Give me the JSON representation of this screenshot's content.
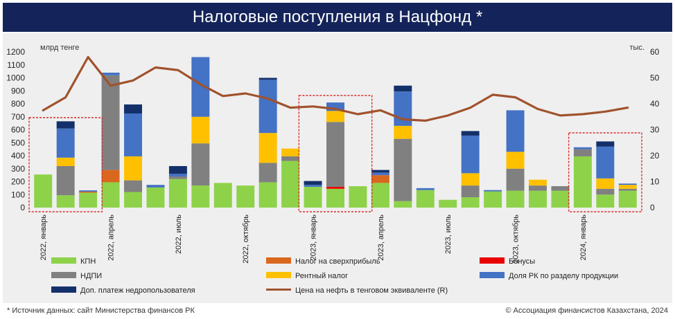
{
  "header": {
    "title": "Налоговые поступления в Нацфонд *"
  },
  "footer": {
    "source": "* Источник данных: сайт Министерства финансов РК",
    "copyright": "© Ассоциация финансистов Казахстана, 2024"
  },
  "colors": {
    "title_bg": "#14245a",
    "plot_bg": "#efefef",
    "highlight_box": "#d92b2b"
  },
  "chart_data": {
    "type": "bar",
    "stacked": true,
    "title": "Налоговые поступления в Нацфонд *",
    "ylabel": "млрд тенге",
    "y2label": "тыс.",
    "ylim": [
      0,
      1200
    ],
    "y2lim": [
      0,
      60
    ],
    "yticks": [
      0,
      100,
      200,
      300,
      400,
      500,
      600,
      700,
      800,
      900,
      1000,
      1100,
      1200
    ],
    "y2ticks": [
      0,
      10,
      20,
      30,
      40,
      50,
      60
    ],
    "grid": false,
    "legend_position": "bottom",
    "months": [
      "2022-01",
      "2022-02",
      "2022-03",
      "2022-04",
      "2022-05",
      "2022-06",
      "2022-07",
      "2022-08",
      "2022-09",
      "2022-10",
      "2022-11",
      "2022-12",
      "2023-01",
      "2023-02",
      "2023-03",
      "2023-04",
      "2023-05",
      "2023-06",
      "2023-07",
      "2023-08",
      "2023-09",
      "2023-10",
      "2023-11",
      "2023-12",
      "2024-01",
      "2024-02",
      "2024-03"
    ],
    "x_tick_labels": [
      {
        "index": 0,
        "label": "2022, январь"
      },
      {
        "index": 3,
        "label": "2022, апрель"
      },
      {
        "index": 6,
        "label": "2022, июль"
      },
      {
        "index": 9,
        "label": "2022, октябрь"
      },
      {
        "index": 12,
        "label": "2023, январь"
      },
      {
        "index": 15,
        "label": "2023, апрель"
      },
      {
        "index": 18,
        "label": "2023, июль"
      },
      {
        "index": 21,
        "label": "2023, октябрь"
      },
      {
        "index": 24,
        "label": "2024, январь"
      }
    ],
    "highlight_ranges": [
      [
        0,
        2
      ],
      [
        12,
        14
      ],
      [
        24,
        26
      ]
    ],
    "series": [
      {
        "name": "КПН",
        "color": "#8ed24a",
        "values": [
          255,
          95,
          115,
          195,
          120,
          155,
          220,
          170,
          190,
          170,
          195,
          360,
          160,
          145,
          165,
          190,
          50,
          135,
          60,
          80,
          125,
          130,
          130,
          130,
          395,
          100,
          130
        ]
      },
      {
        "name": "Налог на сверхприбыль",
        "color": "#d9681e",
        "values": [
          0,
          0,
          8,
          95,
          0,
          0,
          0,
          0,
          0,
          0,
          0,
          0,
          0,
          0,
          0,
          60,
          0,
          0,
          0,
          0,
          0,
          0,
          0,
          0,
          0,
          0,
          0
        ]
      },
      {
        "name": "Бонусы",
        "color": "#e80000",
        "values": [
          0,
          0,
          0,
          0,
          0,
          0,
          0,
          0,
          0,
          0,
          0,
          0,
          0,
          15,
          0,
          0,
          0,
          0,
          0,
          0,
          0,
          0,
          0,
          0,
          0,
          0,
          0
        ]
      },
      {
        "name": "НДПИ",
        "color": "#808080",
        "values": [
          0,
          225,
          0,
          730,
          90,
          0,
          20,
          325,
          0,
          0,
          150,
          35,
          0,
          500,
          0,
          0,
          480,
          0,
          0,
          90,
          0,
          170,
          40,
          35,
          55,
          45,
          15
        ]
      },
      {
        "name": "Рентный налог",
        "color": "#ffc000",
        "values": [
          0,
          65,
          0,
          0,
          185,
          0,
          0,
          205,
          0,
          0,
          230,
          60,
          0,
          85,
          0,
          0,
          100,
          0,
          0,
          95,
          0,
          130,
          45,
          0,
          0,
          80,
          30
        ]
      },
      {
        "name": "Доля РК по разделу продукции",
        "color": "#4472c4",
        "values": [
          0,
          225,
          10,
          20,
          330,
          20,
          20,
          460,
          0,
          0,
          410,
          0,
          15,
          65,
          0,
          20,
          265,
          15,
          0,
          290,
          10,
          320,
          0,
          0,
          15,
          245,
          10
        ]
      },
      {
        "name": "Доп. платеж недропользователя",
        "color": "#14306a",
        "values": [
          0,
          55,
          0,
          0,
          70,
          0,
          60,
          0,
          0,
          0,
          15,
          0,
          30,
          0,
          0,
          20,
          45,
          0,
          0,
          35,
          0,
          0,
          0,
          0,
          0,
          40,
          0
        ]
      }
    ],
    "line": {
      "name": "Цена на нефть в тенговом эквиваленте (R)",
      "color": "#a0522d",
      "axis": "right",
      "values": [
        37.5,
        42.5,
        58,
        47,
        49,
        54,
        53,
        47.5,
        43,
        44,
        42,
        38.5,
        39,
        38,
        36,
        37.5,
        34,
        33.5,
        35.5,
        38.5,
        43.5,
        42.5,
        38,
        35.5,
        36,
        37,
        38.5
      ]
    }
  }
}
